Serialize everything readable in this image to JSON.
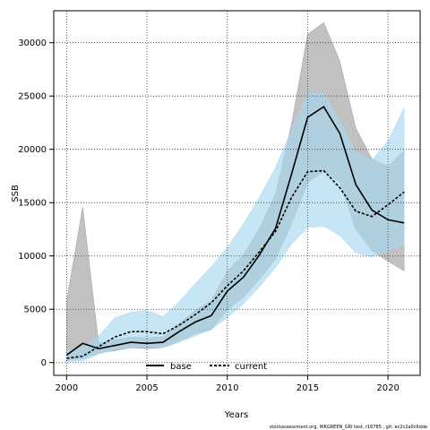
{
  "chart_data": {
    "type": "line",
    "title": "",
    "xlabel": "Years",
    "ylabel": "SSB",
    "xlim": [
      1999.2,
      2022.0
    ],
    "ylim": [
      -1200,
      33000
    ],
    "xticks": [
      2000,
      2005,
      2010,
      2015,
      2020
    ],
    "yticks": [
      0,
      5000,
      10000,
      15000,
      20000,
      25000,
      30000
    ],
    "grid": true,
    "legend_position": "bottom-center",
    "x": [
      2000,
      2001,
      2002,
      2003,
      2004,
      2005,
      2006,
      2007,
      2008,
      2009,
      2010,
      2011,
      2012,
      2013,
      2014,
      2015,
      2016,
      2017,
      2018,
      2019,
      2020,
      2021
    ],
    "series": [
      {
        "name": "base",
        "color": "#000000",
        "band_color": "#a0a0a0",
        "line_style": "solid",
        "values": [
          700,
          1800,
          1300,
          1600,
          1900,
          1800,
          1900,
          2900,
          3800,
          4400,
          6700,
          8000,
          10100,
          12600,
          17700,
          23000,
          24000,
          21500,
          16700,
          14300,
          13400,
          13100
        ],
        "lower": [
          200,
          350,
          900,
          1100,
          1400,
          1300,
          1400,
          2000,
          2700,
          3100,
          4900,
          6100,
          7800,
          9700,
          13000,
          16900,
          17900,
          16900,
          12500,
          10500,
          9500,
          8600
        ],
        "upper": [
          5800,
          14600,
          1800,
          2100,
          2400,
          2300,
          2400,
          3700,
          4900,
          5800,
          8600,
          10100,
          12600,
          15800,
          22400,
          30800,
          31900,
          28300,
          22000,
          19100,
          18400,
          19900
        ]
      },
      {
        "name": "current",
        "color": "#000000",
        "band_color": "#a8d8f0",
        "line_style": "dashed",
        "values": [
          400,
          600,
          1500,
          2400,
          2900,
          2900,
          2700,
          3500,
          4500,
          5600,
          7200,
          8600,
          10400,
          12300,
          15500,
          17900,
          18000,
          16400,
          14200,
          13700,
          14800,
          16000
        ],
        "lower": [
          100,
          150,
          800,
          1200,
          1500,
          1500,
          1400,
          1900,
          2500,
          3100,
          4200,
          5500,
          7100,
          8900,
          11100,
          12700,
          12800,
          11900,
          10300,
          9900,
          10500,
          11000
        ],
        "upper": [
          1100,
          1400,
          2500,
          4200,
          4700,
          4900,
          4300,
          5700,
          7400,
          9000,
          10800,
          13000,
          15500,
          18300,
          21800,
          25200,
          25300,
          22700,
          19700,
          19000,
          20800,
          23900
        ]
      }
    ],
    "footer": "stockassessment.org, WKGREEN_GRI test, r16785 , git: ec2c2a0c6dde"
  }
}
